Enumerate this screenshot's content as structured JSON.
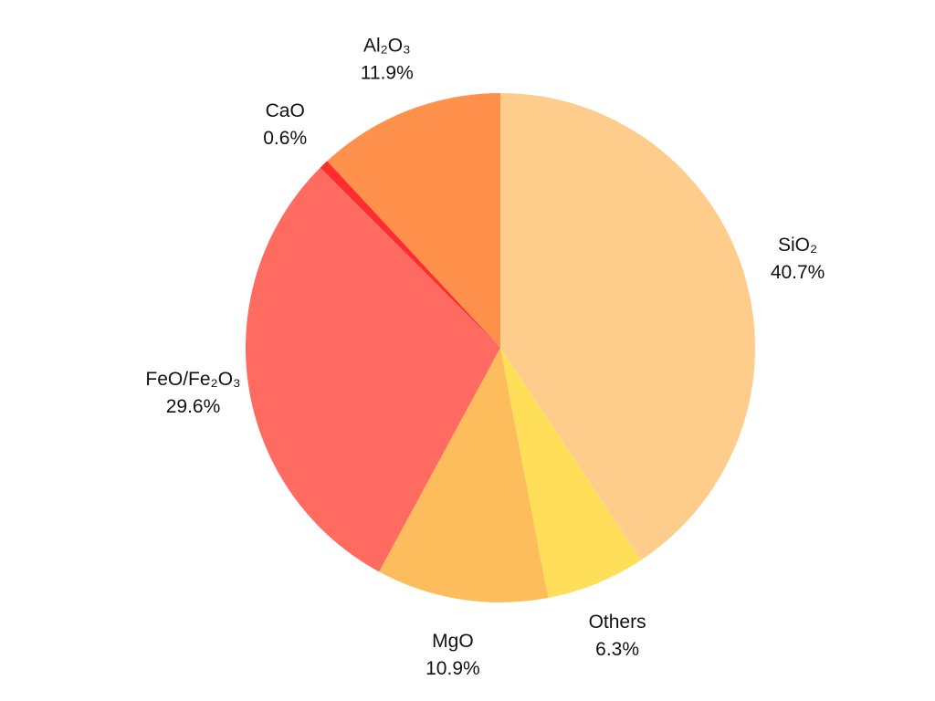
{
  "chart_data": {
    "type": "pie",
    "start_angle_deg": 0,
    "direction": "clockwise",
    "slices": [
      {
        "label": "SiO₂",
        "value": 40.7,
        "value_label": "40.7%",
        "color": "#FECD8C"
      },
      {
        "label": "Others",
        "value": 6.3,
        "value_label": "6.3%",
        "color": "#FFDE59"
      },
      {
        "label": "MgO",
        "value": 10.9,
        "value_label": "10.9%",
        "color": "#FDBD5C"
      },
      {
        "label": "FeO/Fe₂O₃",
        "value": 29.6,
        "value_label": "29.6%",
        "color": "#FF6B60"
      },
      {
        "label": "CaO",
        "value": 0.6,
        "value_label": "0.6%",
        "color": "#FF2E2E"
      },
      {
        "label": "Al₂O₃",
        "value": 11.9,
        "value_label": "11.9%",
        "color": "#FF914D"
      }
    ]
  }
}
